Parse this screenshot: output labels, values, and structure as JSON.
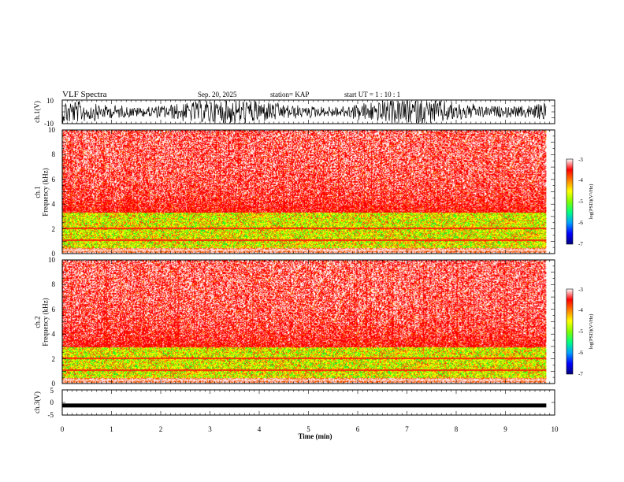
{
  "header": {
    "title": "VLF Spectra",
    "date": "Sep. 20, 2025",
    "station": "station= KAP",
    "start": "start  UT =   1 : 10 : 1"
  },
  "chart_data": {
    "type": "heatmap",
    "x": {
      "label": "Time  (min)",
      "range": [
        0,
        10
      ],
      "ticks": [
        "0",
        "1",
        "2",
        "3",
        "4",
        "5",
        "6",
        "7",
        "8",
        "9",
        "10"
      ],
      "data_end": 9.83
    },
    "waveform_top": {
      "ylabel": "ch.1(V)",
      "range": [
        -10,
        10
      ],
      "ticks": [
        "10",
        "-10"
      ]
    },
    "spectrogram_ch1": {
      "ylabel": "ch.1\nFrequency  (kHz)",
      "range": [
        0,
        10
      ],
      "ticks": [
        "0",
        "2",
        "4",
        "6",
        "8",
        "10"
      ],
      "colorbar": {
        "label": "log(PSD)(V²/Hz)",
        "range": [
          -7,
          -3
        ],
        "ticks": [
          "-3",
          "-4",
          "-5",
          "-6",
          "-7"
        ]
      }
    },
    "spectrogram_ch2": {
      "ylabel": "ch.2\nFrequency  (kHz)",
      "range": [
        0,
        10
      ],
      "ticks": [
        "0",
        "2",
        "4",
        "6",
        "8",
        "10"
      ],
      "colorbar": {
        "label": "log(PSD)(V²/Hz)",
        "range": [
          -7,
          -3
        ],
        "ticks": [
          "-3",
          "-4",
          "-5",
          "-6",
          "-7"
        ]
      }
    },
    "waveform_bottom": {
      "ylabel": "ch.3(V)",
      "range": [
        -5,
        5
      ],
      "ticks": [
        "5",
        "0",
        "-5"
      ],
      "level": -1.2
    },
    "colormap": [
      "#000080",
      "#0000ff",
      "#00a0ff",
      "#00ff80",
      "#80ff00",
      "#ffff00",
      "#ff8000",
      "#ff0000",
      "#ffffff"
    ]
  }
}
